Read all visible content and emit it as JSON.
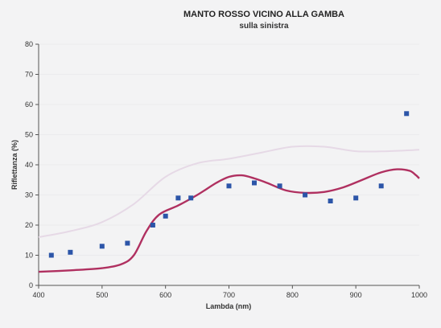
{
  "chart_data": {
    "type": "scatter",
    "title": "MANTO ROSSO VICINO ALLA GAMBA",
    "subtitle": "sulla sinistra",
    "xlabel": "Lambda (nm)",
    "ylabel": "Riflettanza (%)",
    "xlim": [
      400,
      1000
    ],
    "ylim": [
      0,
      80
    ],
    "x_ticks": [
      400,
      500,
      600,
      700,
      800,
      900,
      1000
    ],
    "y_ticks": [
      0,
      10,
      20,
      30,
      40,
      50,
      60,
      70,
      80
    ],
    "grid": false,
    "legend": "none",
    "series": [
      {
        "kind": "points",
        "color": "#2c55a8",
        "marker": "square",
        "points": [
          {
            "x": 420,
            "y": 10
          },
          {
            "x": 450,
            "y": 11
          },
          {
            "x": 500,
            "y": 13
          },
          {
            "x": 540,
            "y": 14
          },
          {
            "x": 580,
            "y": 20
          },
          {
            "x": 600,
            "y": 23
          },
          {
            "x": 620,
            "y": 29
          },
          {
            "x": 640,
            "y": 29
          },
          {
            "x": 700,
            "y": 33
          },
          {
            "x": 740,
            "y": 34
          },
          {
            "x": 780,
            "y": 33
          },
          {
            "x": 820,
            "y": 30
          },
          {
            "x": 860,
            "y": 28
          },
          {
            "x": 900,
            "y": 29
          },
          {
            "x": 940,
            "y": 33
          },
          {
            "x": 980,
            "y": 57
          }
        ]
      },
      {
        "kind": "curve",
        "color": "#b03060",
        "points": [
          {
            "x": 400,
            "y": 4.5
          },
          {
            "x": 450,
            "y": 5
          },
          {
            "x": 500,
            "y": 5.7
          },
          {
            "x": 530,
            "y": 7
          },
          {
            "x": 550,
            "y": 10
          },
          {
            "x": 570,
            "y": 18
          },
          {
            "x": 590,
            "y": 23.5
          },
          {
            "x": 620,
            "y": 26.5
          },
          {
            "x": 650,
            "y": 30
          },
          {
            "x": 680,
            "y": 34
          },
          {
            "x": 700,
            "y": 36
          },
          {
            "x": 720,
            "y": 36.5
          },
          {
            "x": 740,
            "y": 35.5
          },
          {
            "x": 760,
            "y": 34
          },
          {
            "x": 790,
            "y": 31.5
          },
          {
            "x": 820,
            "y": 30.7
          },
          {
            "x": 850,
            "y": 31
          },
          {
            "x": 880,
            "y": 32.5
          },
          {
            "x": 910,
            "y": 35
          },
          {
            "x": 940,
            "y": 37.5
          },
          {
            "x": 965,
            "y": 38.5
          },
          {
            "x": 985,
            "y": 38
          },
          {
            "x": 995,
            "y": 36.5
          },
          {
            "x": 1000,
            "y": 35.5
          }
        ]
      },
      {
        "kind": "faint-curve",
        "color": "#e6d9e6",
        "points": [
          {
            "x": 400,
            "y": 16
          },
          {
            "x": 450,
            "y": 18
          },
          {
            "x": 500,
            "y": 21
          },
          {
            "x": 550,
            "y": 27
          },
          {
            "x": 600,
            "y": 36
          },
          {
            "x": 650,
            "y": 40.5
          },
          {
            "x": 700,
            "y": 42
          },
          {
            "x": 750,
            "y": 44
          },
          {
            "x": 800,
            "y": 46
          },
          {
            "x": 850,
            "y": 46
          },
          {
            "x": 900,
            "y": 44.5
          },
          {
            "x": 950,
            "y": 44.5
          },
          {
            "x": 1000,
            "y": 45
          }
        ]
      }
    ]
  }
}
